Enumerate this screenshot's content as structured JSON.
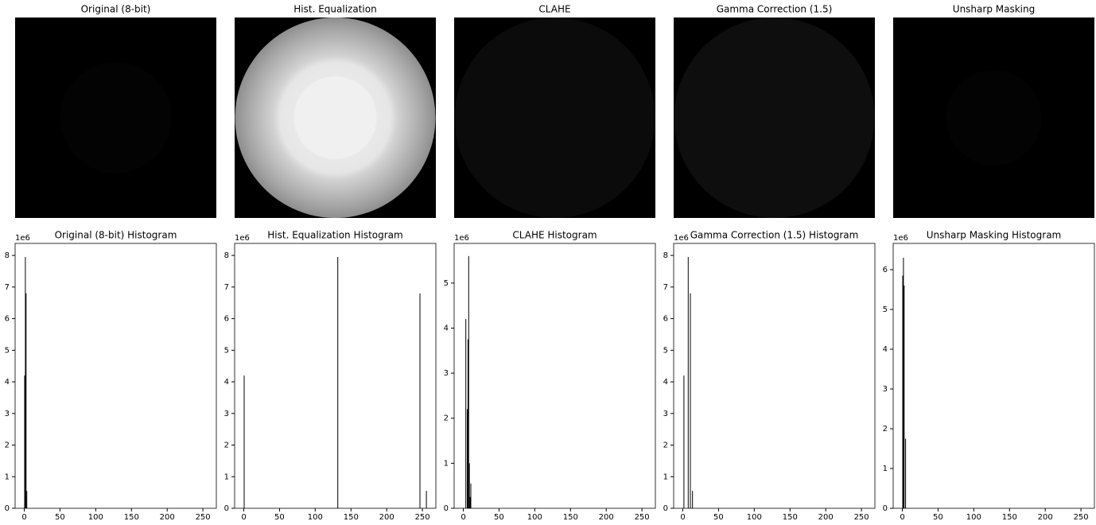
{
  "images": [
    {
      "title": "Original (8-bit)"
    },
    {
      "title": "Hist. Equalization"
    },
    {
      "title": "CLAHE"
    },
    {
      "title": "Gamma Correction (1.5)"
    },
    {
      "title": "Unsharp Masking"
    }
  ],
  "chart_data": [
    {
      "type": "bar",
      "title": "Original (8-bit) Histogram",
      "offset_label": "1e6",
      "color": "#000000",
      "x": [
        0,
        1,
        2,
        3
      ],
      "values": [
        4.2,
        7.95,
        6.8,
        0.55
      ],
      "xlim": [
        -12.8,
        268.8
      ],
      "xticks": [
        0,
        50,
        100,
        150,
        200,
        250
      ],
      "ylim": [
        0,
        8.38
      ],
      "yticks": [
        0,
        1,
        2,
        3,
        4,
        5,
        6,
        7,
        8
      ]
    },
    {
      "type": "bar",
      "title": "Hist. Equalization Histogram",
      "offset_label": "1e6",
      "color": "#000000",
      "x": [
        0,
        131,
        246,
        255
      ],
      "values": [
        4.2,
        7.95,
        6.8,
        0.55
      ],
      "xlim": [
        -12.8,
        268.8
      ],
      "xticks": [
        0,
        50,
        100,
        150,
        200,
        250
      ],
      "ylim": [
        0,
        8.38
      ],
      "yticks": [
        0,
        1,
        2,
        3,
        4,
        5,
        6,
        7,
        8
      ]
    },
    {
      "type": "bar",
      "title": "CLAHE Histogram",
      "offset_label": "1e6",
      "color": "#000000",
      "x": [
        3,
        5,
        6,
        7,
        8,
        9,
        10
      ],
      "values": [
        4.2,
        2.2,
        3.75,
        5.6,
        1.0,
        0.25,
        0.55
      ],
      "xlim": [
        -12.8,
        268.8
      ],
      "xticks": [
        0,
        50,
        100,
        150,
        200,
        250
      ],
      "ylim": [
        0,
        5.88
      ],
      "yticks": [
        0,
        1,
        2,
        3,
        4,
        5
      ]
    },
    {
      "type": "bar",
      "title": "Gamma Correction (1.5) Histogram",
      "offset_label": "1e6",
      "color": "#000000",
      "x": [
        1,
        7,
        10,
        13
      ],
      "values": [
        4.2,
        7.95,
        6.8,
        0.55
      ],
      "xlim": [
        -12.8,
        268.8
      ],
      "xticks": [
        0,
        50,
        100,
        150,
        200,
        250
      ],
      "ylim": [
        0,
        8.38
      ],
      "yticks": [
        0,
        1,
        2,
        3,
        4,
        5,
        6,
        7,
        8
      ]
    },
    {
      "type": "bar",
      "title": "Unsharp Masking Histogram",
      "offset_label": "1e6",
      "color": "#000000",
      "x": [
        0,
        1,
        2,
        4
      ],
      "values": [
        5.85,
        6.3,
        5.6,
        1.75
      ],
      "xlim": [
        -12.8,
        268.8
      ],
      "xticks": [
        0,
        50,
        100,
        150,
        200,
        250
      ],
      "ylim": [
        0,
        6.66
      ],
      "yticks": [
        0,
        1,
        2,
        3,
        4,
        5,
        6
      ]
    }
  ]
}
